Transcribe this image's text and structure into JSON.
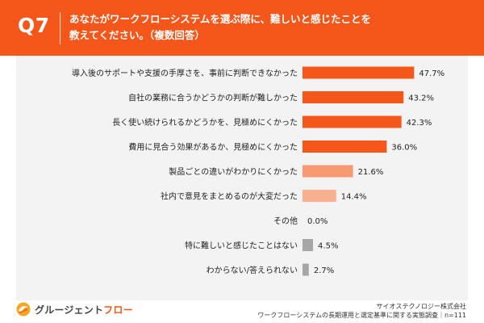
{
  "header": {
    "question_number": "Q7",
    "title_line1": "あなたがワークフローシステムを選ぶ際に、難しいと感じたことを",
    "title_line2": "教えてください。（複数回答）",
    "color": "#f5571a"
  },
  "chart_data": {
    "type": "bar",
    "orientation": "horizontal",
    "categories": [
      "導入後のサポートや支援の手厚さを、事前に判断できなかった",
      "自社の業務に合うかどうかの判断が難しかった",
      "長く使い続けられるかどうかを、見極めにくかった",
      "費用に見合う効果があるか、見極めにくかった",
      "製品ごとの違いがわかりにくかった",
      "社内で意見をまとめるのが大変だった",
      "その他",
      "特に難しいと感じたことはない",
      "わからない/答えられない"
    ],
    "values": [
      47.7,
      43.2,
      42.3,
      36.0,
      21.6,
      14.4,
      0.0,
      4.5,
      2.7
    ],
    "value_labels": [
      "47.7%",
      "43.2%",
      "42.3%",
      "36.0%",
      "21.6%",
      "14.4%",
      "0.0%",
      "4.5%",
      "2.7%"
    ],
    "bar_colors": [
      "#f5571a",
      "#f5571a",
      "#f5571a",
      "#f5571a",
      "#f59a72",
      "#f8b08f",
      "#f8b08f",
      "#a6a6a6",
      "#a6a6a6"
    ],
    "unit": "%",
    "xlim": [
      0,
      50
    ],
    "grid": false,
    "legend": "none"
  },
  "footer": {
    "logo_text_main": "グルージェント",
    "logo_text_accent": "フロー",
    "company": "サイオステクノロジー株式会社",
    "survey": "ワークフローシステムの長期運用と選定基準に関する実態調査｜n=111"
  }
}
